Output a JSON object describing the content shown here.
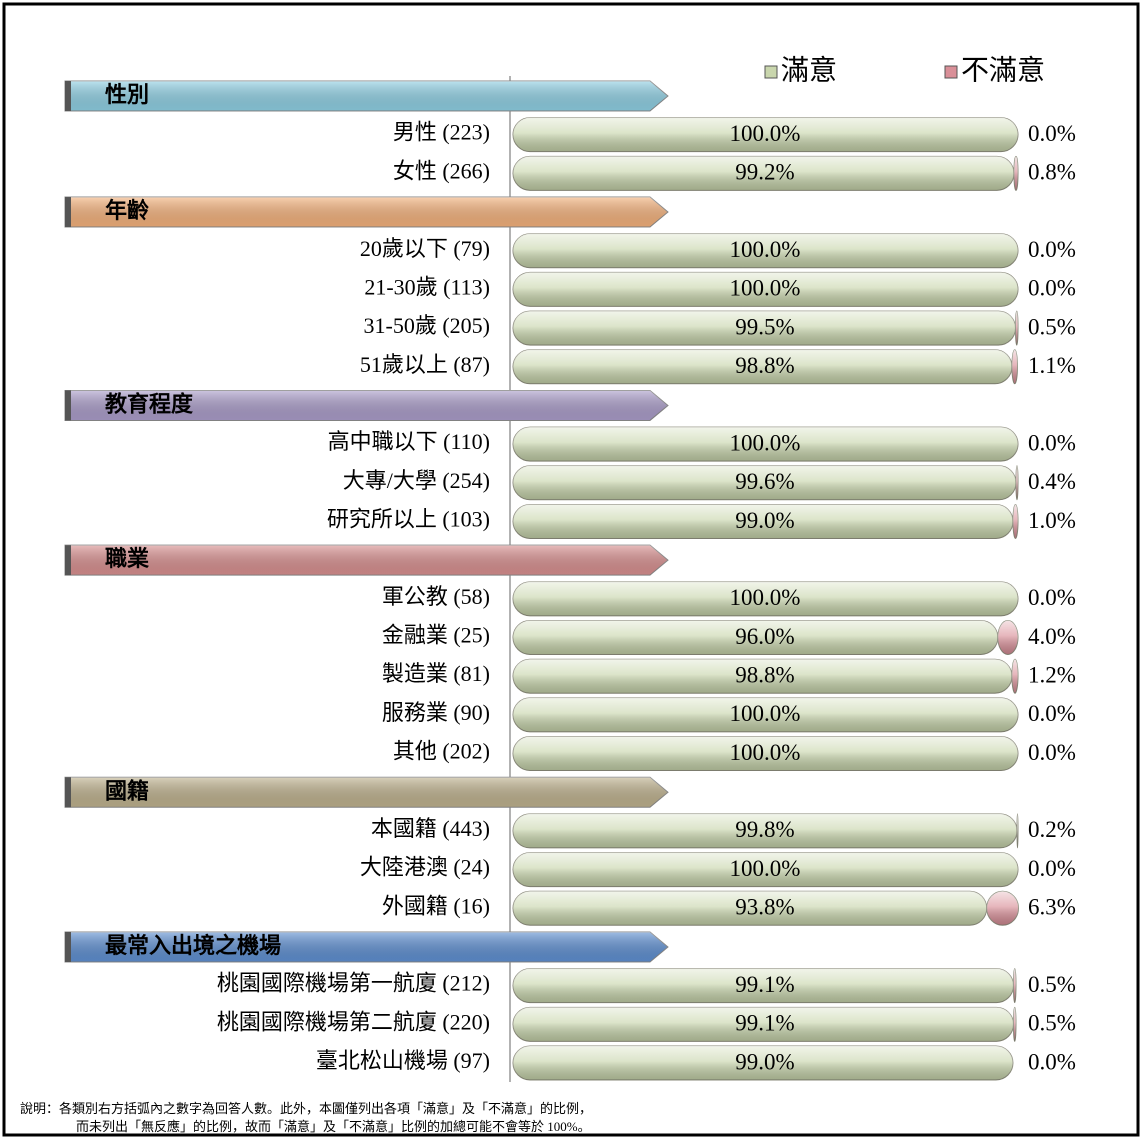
{
  "chart_data": {
    "type": "bar",
    "orientation": "horizontal",
    "stacked": true,
    "xlim": [
      0,
      100
    ],
    "groups": [
      {
        "label": "性別",
        "color": "#8fd0e4",
        "categories": [
          "男性 (223)",
          "女性 (266)"
        ]
      },
      {
        "label": "年齡",
        "color": "#f5b27c",
        "categories": [
          "20歲以下 (79)",
          "21-30歲 (113)",
          "31-50歲 (205)",
          "51歲以上 (87)"
        ]
      },
      {
        "label": "教育程度",
        "color": "#ab9dca",
        "categories": [
          "高中職以下 (110)",
          "大專/大學 (254)",
          "研究所以上 (103)"
        ]
      },
      {
        "label": "職業",
        "color": "#d99090",
        "categories": [
          "軍公教 (58)",
          "金融業 (25)",
          "製造業 (81)",
          "服務業 (90)",
          "其他 (202)"
        ]
      },
      {
        "label": "國籍",
        "color": "#bfb28e",
        "categories": [
          "本國籍 (443)",
          "大陸港澳 (24)",
          "外國籍 (16)"
        ]
      },
      {
        "label": "最常入出境之機場",
        "color": "#5f90d2",
        "categories": [
          "桃園國際機場第一航廈 (212)",
          "桃園國際機場第二航廈 (220)",
          "臺北松山機場 (97)"
        ]
      }
    ],
    "series": [
      {
        "name": "滿意",
        "color": "#c9d6ad",
        "values": [
          100.0,
          99.2,
          100.0,
          100.0,
          99.5,
          98.8,
          100.0,
          99.6,
          99.0,
          100.0,
          96.0,
          98.8,
          100.0,
          100.0,
          99.8,
          100.0,
          93.8,
          99.1,
          99.1,
          99.0
        ],
        "value_labels": [
          "100.0%",
          "99.2%",
          "100.0%",
          "100.0%",
          "99.5%",
          "98.8%",
          "100.0%",
          "99.6%",
          "99.0%",
          "100.0%",
          "96.0%",
          "98.8%",
          "100.0%",
          "100.0%",
          "99.8%",
          "100.0%",
          "93.8%",
          "99.1%",
          "99.1%",
          "99.0%"
        ]
      },
      {
        "name": "不滿意",
        "color": "#d98f98",
        "values": [
          0.0,
          0.8,
          0.0,
          0.0,
          0.5,
          1.1,
          0.0,
          0.4,
          1.0,
          0.0,
          4.0,
          1.2,
          0.0,
          0.0,
          0.2,
          0.0,
          6.3,
          0.5,
          0.5,
          0.0
        ],
        "value_labels": [
          "0.0%",
          "0.8%",
          "0.0%",
          "0.0%",
          "0.5%",
          "1.1%",
          "0.0%",
          "0.4%",
          "1.0%",
          "0.0%",
          "4.0%",
          "1.2%",
          "0.0%",
          "0.0%",
          "0.2%",
          "0.0%",
          "6.3%",
          "0.5%",
          "0.5%",
          "0.0%"
        ]
      }
    ],
    "footnote": [
      "說明：各類別右方括弧內之數字為回答人數。此外，本圖僅列出各項「滿意」及「不滿意」的比例，",
      "而未列出「無反應」的比例，故而「滿意」及「不滿意」比例的加總可能不會等於 100%。"
    ]
  }
}
